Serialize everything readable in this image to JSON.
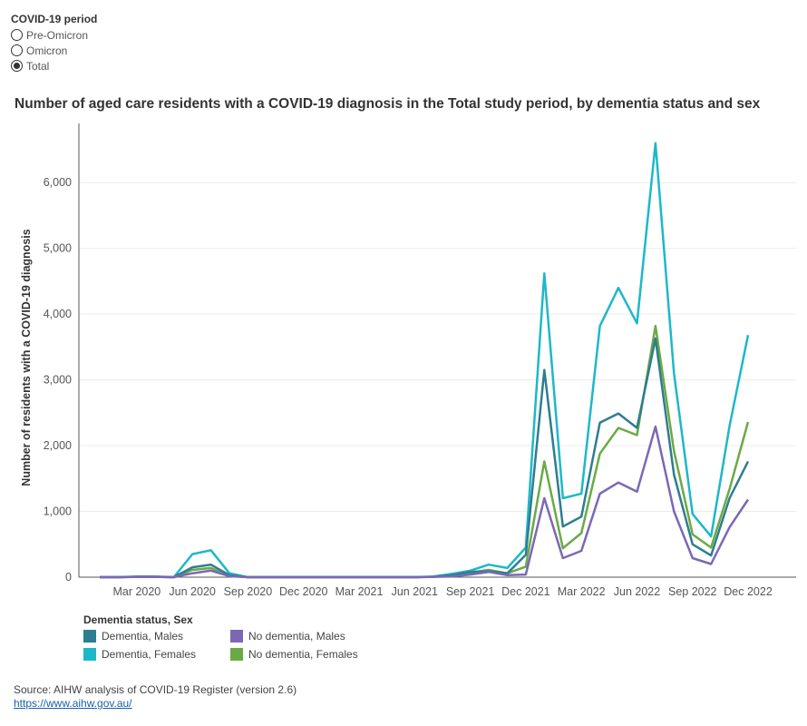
{
  "filter": {
    "title": "COVID-19 period",
    "options": [
      {
        "label": "Pre-Omicron",
        "selected": false
      },
      {
        "label": "Omicron",
        "selected": false
      },
      {
        "label": "Total",
        "selected": true
      }
    ]
  },
  "legend": {
    "title": "Dementia status, Sex",
    "items": [
      {
        "label": "Dementia, Males",
        "color": "#2e7d91"
      },
      {
        "label": "No dementia, Males",
        "color": "#7b68b5"
      },
      {
        "label": "Dementia, Females",
        "color": "#1db8c8"
      },
      {
        "label": "No dementia, Females",
        "color": "#6aaa45"
      }
    ]
  },
  "source": {
    "text": "Source: AIHW analysis of COVID-19 Register (version 2.6)",
    "link": "https://www.aihw.gov.au/"
  },
  "chart_data": {
    "type": "line",
    "title": "Number of aged care residents with a COVID-19 diagnosis in the Total study period, by dementia status and sex",
    "ylabel": "Number of residents with a COVID-19 diagnosis",
    "xlabel": "",
    "ylim": [
      0,
      6900
    ],
    "yticks": [
      0,
      1000,
      2000,
      3000,
      4000,
      5000,
      6000
    ],
    "ytick_labels": [
      "0",
      "1,000",
      "2,000",
      "3,000",
      "4,000",
      "5,000",
      "6,000"
    ],
    "x": [
      "2020-01",
      "2020-02",
      "2020-03",
      "2020-04",
      "2020-05",
      "2020-06",
      "2020-07",
      "2020-08",
      "2020-09",
      "2020-10",
      "2020-11",
      "2020-12",
      "2021-01",
      "2021-02",
      "2021-03",
      "2021-04",
      "2021-05",
      "2021-06",
      "2021-07",
      "2021-08",
      "2021-09",
      "2021-10",
      "2021-11",
      "2021-12",
      "2022-01",
      "2022-02",
      "2022-03",
      "2022-04",
      "2022-05",
      "2022-06",
      "2022-07",
      "2022-08",
      "2022-09",
      "2022-10",
      "2022-11",
      "2022-12"
    ],
    "xticks": [
      "2020-03",
      "2020-06",
      "2020-09",
      "2020-12",
      "2021-03",
      "2021-06",
      "2021-09",
      "2021-12",
      "2022-03",
      "2022-06",
      "2022-09",
      "2022-12"
    ],
    "xtick_labels": [
      "Mar 2020",
      "Jun 2020",
      "Sep 2020",
      "Dec 2020",
      "Mar 2021",
      "Jun 2021",
      "Sep 2021",
      "Dec 2021",
      "Mar 2022",
      "Jun 2022",
      "Sep 2022",
      "Dec 2022"
    ],
    "grid": true,
    "legend_position": "bottom-left",
    "series": [
      {
        "name": "Dementia, Females",
        "color": "#1db8c8",
        "values": [
          0,
          0,
          10,
          10,
          0,
          350,
          410,
          60,
          0,
          0,
          0,
          0,
          0,
          0,
          0,
          0,
          0,
          0,
          10,
          50,
          100,
          190,
          140,
          450,
          4620,
          1200,
          1270,
          3820,
          4400,
          3860,
          6600,
          3100,
          960,
          620,
          2300,
          3680
        ]
      },
      {
        "name": "No dementia, Females",
        "color": "#6aaa45",
        "values": [
          0,
          0,
          5,
          5,
          0,
          110,
          140,
          20,
          0,
          0,
          0,
          0,
          0,
          0,
          0,
          0,
          0,
          0,
          5,
          20,
          70,
          110,
          60,
          160,
          1760,
          440,
          670,
          1880,
          2270,
          2160,
          3820,
          1920,
          650,
          450,
          1340,
          2360
        ]
      },
      {
        "name": "Dementia, Males",
        "color": "#2e7d91",
        "values": [
          0,
          0,
          5,
          5,
          0,
          150,
          190,
          30,
          0,
          0,
          0,
          0,
          0,
          0,
          0,
          0,
          0,
          0,
          5,
          30,
          80,
          90,
          60,
          340,
          3150,
          770,
          920,
          2350,
          2490,
          2270,
          3630,
          1560,
          500,
          330,
          1200,
          1760
        ]
      },
      {
        "name": "No dementia, Males",
        "color": "#7b68b5",
        "values": [
          0,
          0,
          5,
          5,
          0,
          60,
          100,
          15,
          0,
          0,
          0,
          0,
          0,
          0,
          0,
          0,
          0,
          0,
          5,
          10,
          40,
          80,
          30,
          40,
          1200,
          290,
          400,
          1270,
          1440,
          1300,
          2290,
          1000,
          290,
          200,
          760,
          1180
        ]
      }
    ]
  }
}
